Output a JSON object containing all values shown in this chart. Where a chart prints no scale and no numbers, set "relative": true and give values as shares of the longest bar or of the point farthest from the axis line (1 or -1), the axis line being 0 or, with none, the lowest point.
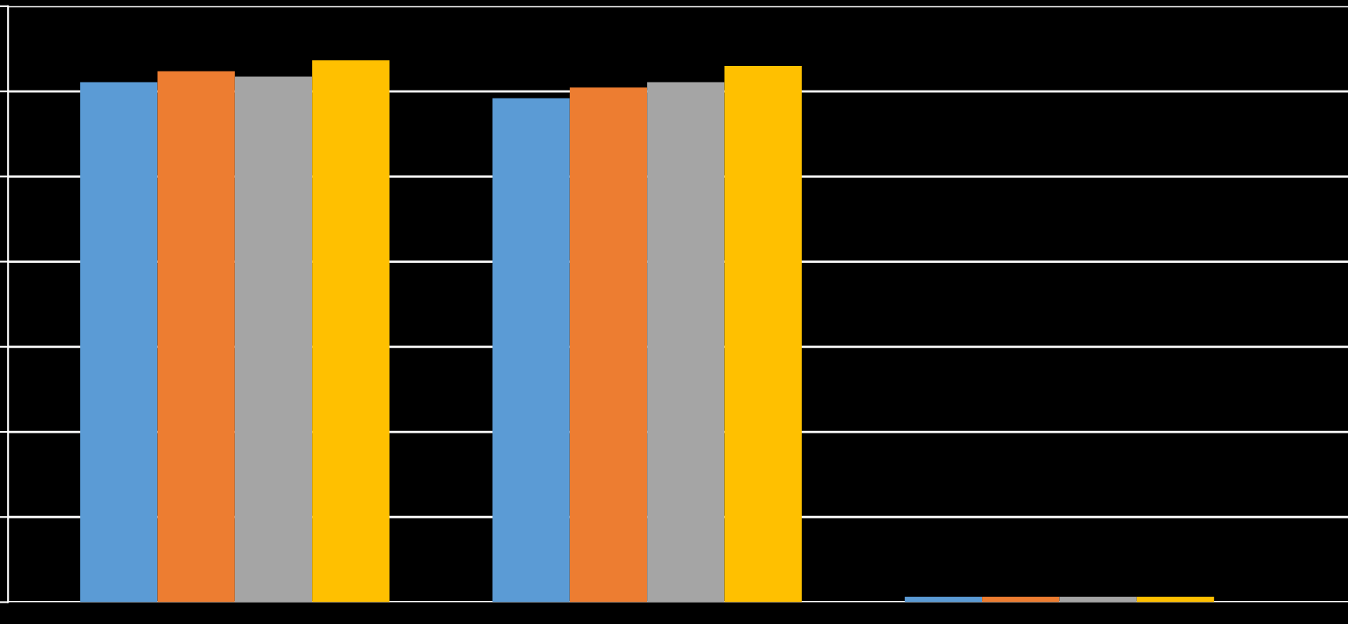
{
  "chart_data": {
    "type": "bar",
    "relative": true,
    "grid": "y",
    "categories": [
      null,
      null,
      null
    ],
    "series": [
      {
        "color": "#5b9bd5",
        "values": [
          0.96,
          0.93,
          0.01
        ]
      },
      {
        "color": "#ed7d31",
        "values": [
          0.98,
          0.95,
          0.01
        ]
      },
      {
        "color": "#a5a5a5",
        "values": [
          0.97,
          0.96,
          0.01
        ]
      },
      {
        "color": "#ffc000",
        "values": [
          1,
          0.99,
          0.01
        ]
      }
    ]
  }
}
